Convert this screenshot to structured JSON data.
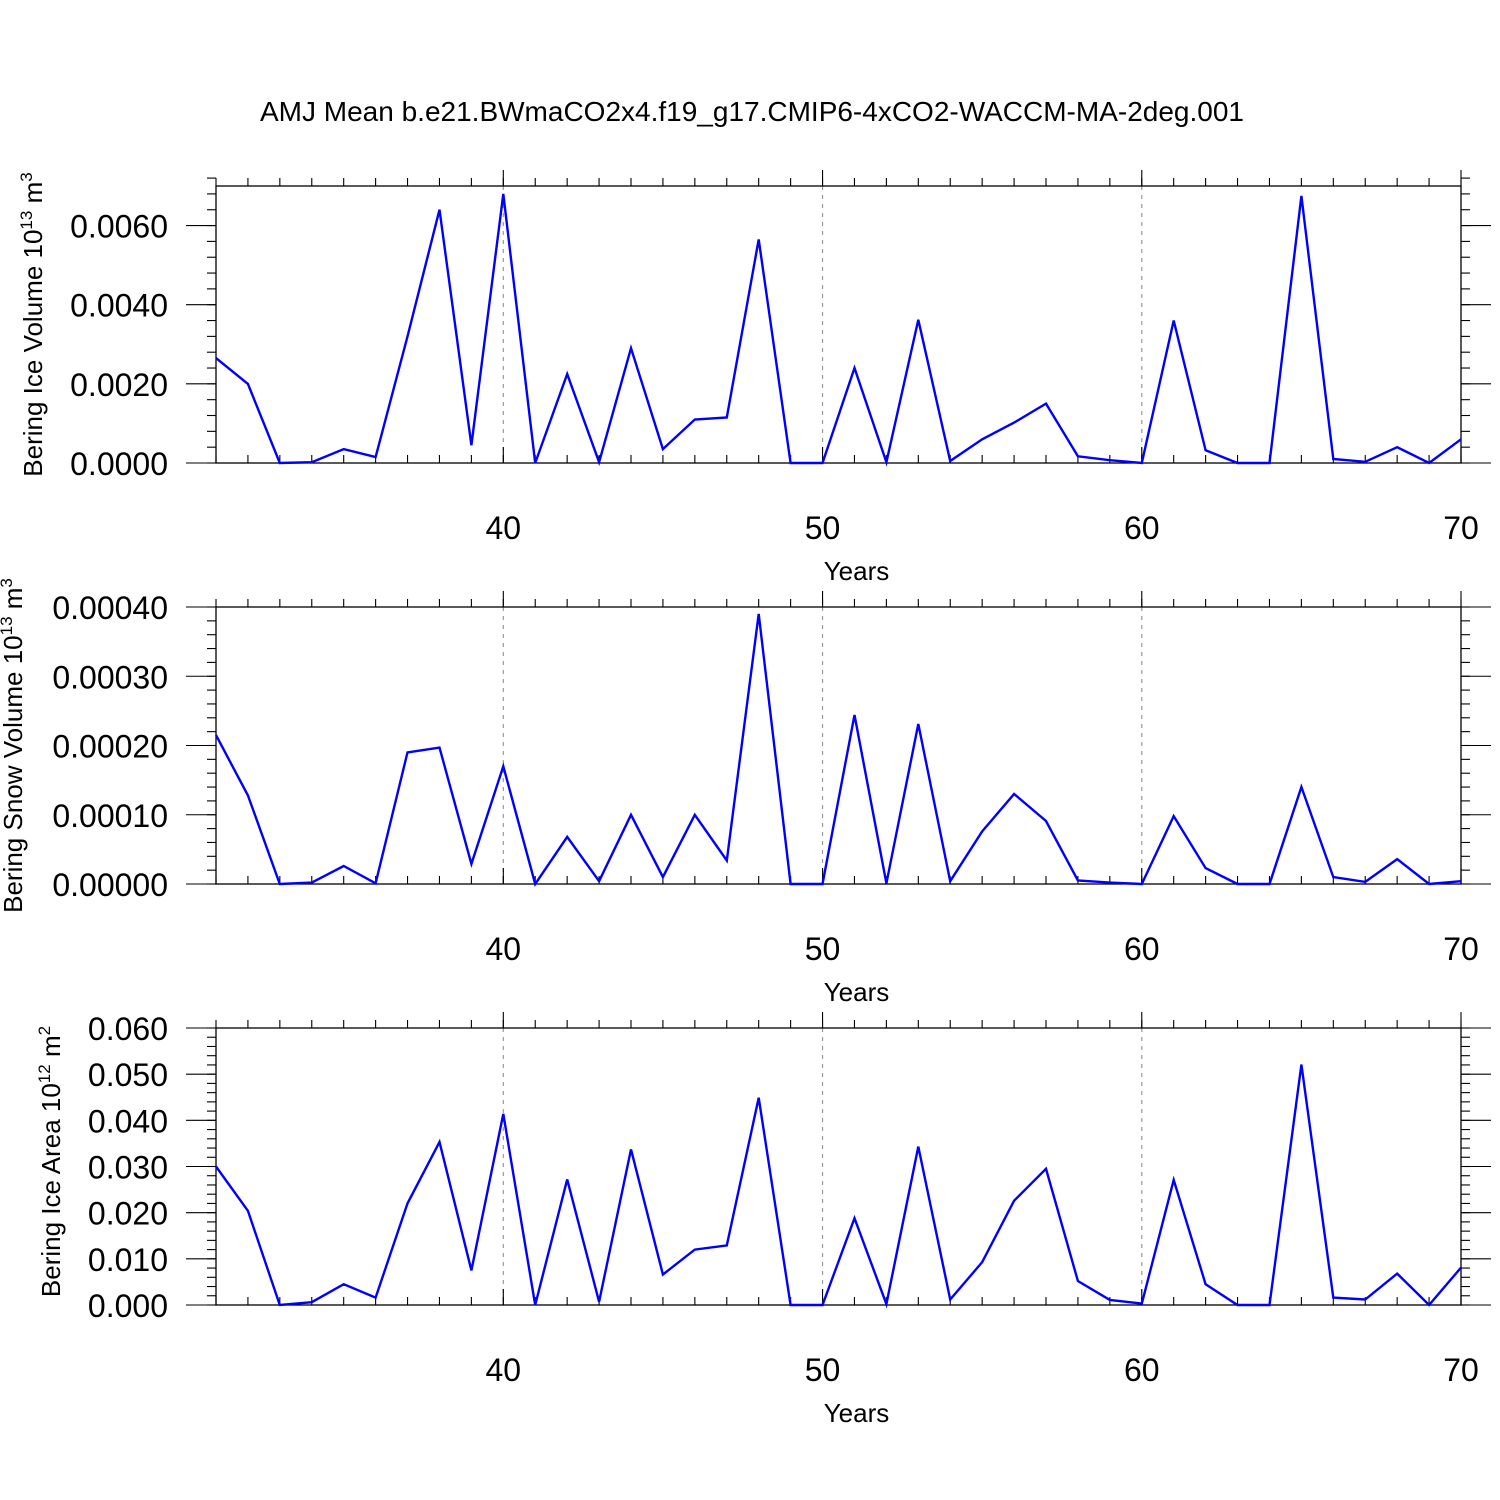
{
  "title": "AMJ Mean b.e21.BWmaCO2x4.f19_g17.CMIP6-4xCO2-WACCM-MA-2deg.001",
  "colors": {
    "line": "#0000ff",
    "grid": "#999999",
    "axis": "#000000"
  },
  "chart_data": [
    {
      "type": "line",
      "ylabel": {
        "text": "Bering Ice Volume 10",
        "sup": "13",
        "unit": " m",
        "unit_sup": "3"
      },
      "xlabel": "Years",
      "xlim": [
        31,
        70
      ],
      "ylim": [
        0,
        0.007
      ],
      "xticks": [
        40,
        50,
        60,
        70
      ],
      "yticks": [
        0,
        0.002,
        0.004,
        0.006
      ],
      "ytick_labels": [
        "0.0000",
        "0.0020",
        "0.0040",
        "0.0060"
      ],
      "grid_x": [
        40,
        50,
        60
      ],
      "x": [
        31,
        32,
        33,
        34,
        35,
        36,
        37,
        38,
        39,
        40,
        41,
        42,
        43,
        44,
        45,
        46,
        47,
        48,
        49,
        50,
        51,
        52,
        53,
        54,
        55,
        56,
        57,
        58,
        59,
        60,
        61,
        62,
        63,
        64,
        65,
        66,
        67,
        68,
        69,
        70
      ],
      "values": [
        0.00265,
        0.002,
        0.0,
        2e-05,
        0.00035,
        0.00015,
        0.0032,
        0.0064,
        0.00045,
        0.0068,
        0.0,
        0.00225,
        2e-05,
        0.0029,
        0.00035,
        0.0011,
        0.00115,
        0.00565,
        0.0,
        0.0,
        0.0024,
        2e-05,
        0.00362,
        5e-05,
        0.0006,
        0.00102,
        0.0015,
        0.00017,
        7e-05,
        0.0,
        0.0036,
        0.00032,
        0.0,
        0.0,
        0.00675,
        0.0001,
        3e-05,
        0.0004,
        0.0,
        0.0006
      ]
    },
    {
      "type": "line",
      "ylabel": {
        "text": "Bering Snow Volume 10",
        "sup": "13",
        "unit": " m",
        "unit_sup": "3"
      },
      "xlabel": "Years",
      "xlim": [
        31,
        70
      ],
      "ylim": [
        0,
        0.0004
      ],
      "xticks": [
        40,
        50,
        60,
        70
      ],
      "yticks": [
        0,
        0.0001,
        0.0002,
        0.0003,
        0.0004
      ],
      "ytick_labels": [
        "0.00000",
        "0.00010",
        "0.00020",
        "0.00030",
        "0.00040"
      ],
      "grid_x": [
        40,
        50,
        60
      ],
      "x": [
        31,
        32,
        33,
        34,
        35,
        36,
        37,
        38,
        39,
        40,
        41,
        42,
        43,
        44,
        45,
        46,
        47,
        48,
        49,
        50,
        51,
        52,
        53,
        54,
        55,
        56,
        57,
        58,
        59,
        60,
        61,
        62,
        63,
        64,
        65,
        66,
        67,
        68,
        69,
        70
      ],
      "values": [
        0.000215,
        0.000128,
        0.0,
        2e-06,
        2.6e-05,
        1e-06,
        0.00019,
        0.000197,
        2.9e-05,
        0.00017,
        0.0,
        6.8e-05,
        4e-06,
        0.0001,
        1e-05,
        0.0001,
        3.4e-05,
        0.00039,
        0.0,
        0.0,
        0.000244,
        1e-06,
        0.000231,
        4e-06,
        7.6e-05,
        0.00013,
        9.1e-05,
        5e-06,
        2e-06,
        0.0,
        9.8e-05,
        2.3e-05,
        0.0,
        0.0,
        0.00014,
        1e-05,
        3e-06,
        3.6e-05,
        0.0,
        4e-06
      ]
    },
    {
      "type": "line",
      "ylabel": {
        "text": "Bering Ice Area 10",
        "sup": "12",
        "unit": " m",
        "unit_sup": "2"
      },
      "xlabel": "Years",
      "xlim": [
        31,
        70
      ],
      "ylim": [
        0,
        0.06
      ],
      "xticks": [
        40,
        50,
        60,
        70
      ],
      "yticks": [
        0,
        0.01,
        0.02,
        0.03,
        0.04,
        0.05,
        0.06
      ],
      "ytick_labels": [
        "0.000",
        "0.010",
        "0.020",
        "0.030",
        "0.040",
        "0.050",
        "0.060"
      ],
      "grid_x": [
        40,
        50,
        60
      ],
      "x": [
        31,
        32,
        33,
        34,
        35,
        36,
        37,
        38,
        39,
        40,
        41,
        42,
        43,
        44,
        45,
        46,
        47,
        48,
        49,
        50,
        51,
        52,
        53,
        54,
        55,
        56,
        57,
        58,
        59,
        60,
        61,
        62,
        63,
        64,
        65,
        66,
        67,
        68,
        69,
        70
      ],
      "values": [
        0.03,
        0.0204,
        0.0,
        0.0006,
        0.0045,
        0.0016,
        0.022,
        0.0353,
        0.0075,
        0.0414,
        0.0,
        0.0272,
        0.0007,
        0.0337,
        0.0066,
        0.012,
        0.0129,
        0.0449,
        0.0,
        0.0,
        0.0188,
        0.0002,
        0.0343,
        0.0012,
        0.0093,
        0.0226,
        0.0295,
        0.0052,
        0.0011,
        0.0003,
        0.0271,
        0.0045,
        0.0,
        0.0,
        0.0521,
        0.0016,
        0.0012,
        0.0068,
        0.0,
        0.0081
      ]
    }
  ]
}
